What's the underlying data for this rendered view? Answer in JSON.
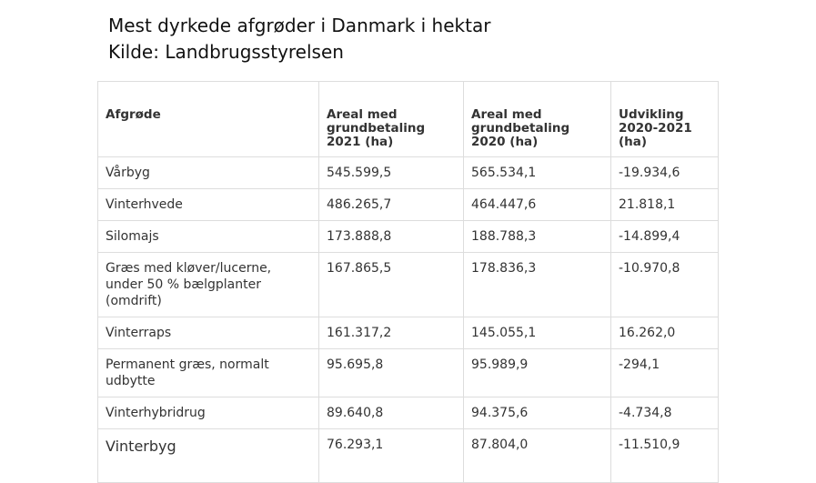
{
  "title": {
    "line1": "Mest dyrkede afgrøder i Danmark i hektar",
    "line2": "Kilde: Landbrugsstyrelsen"
  },
  "chart_data": {
    "type": "table",
    "columns": [
      "Afgrøde",
      "Areal med grundbetaling 2021 (ha)",
      "Areal med grundbetaling 2020 (ha)",
      "Udvikling 2020-2021 (ha)"
    ],
    "rows": [
      [
        "Vårbyg",
        "545.599,5",
        "565.534,1",
        "-19.934,6"
      ],
      [
        "Vinterhvede",
        "486.265,7",
        "464.447,6",
        "21.818,1"
      ],
      [
        "Silomajs",
        "173.888,8",
        "188.788,3",
        "-14.899,4"
      ],
      [
        "Græs med kløver/lucerne, under 50 % bælgplanter (omdrift)",
        "167.865,5",
        "178.836,3",
        "-10.970,8"
      ],
      [
        "Vinterraps",
        "161.317,2",
        "145.055,1",
        "16.262,0"
      ],
      [
        "Permanent græs, normalt udbytte",
        "95.695,8",
        "95.989,9",
        "-294,1"
      ],
      [
        "Vinterhybridrug",
        "89.640,8",
        "94.375,6",
        "-4.734,8"
      ],
      [
        "Vinterbyg",
        "76.293,1",
        "87.804,0",
        "-11.510,9"
      ]
    ]
  }
}
